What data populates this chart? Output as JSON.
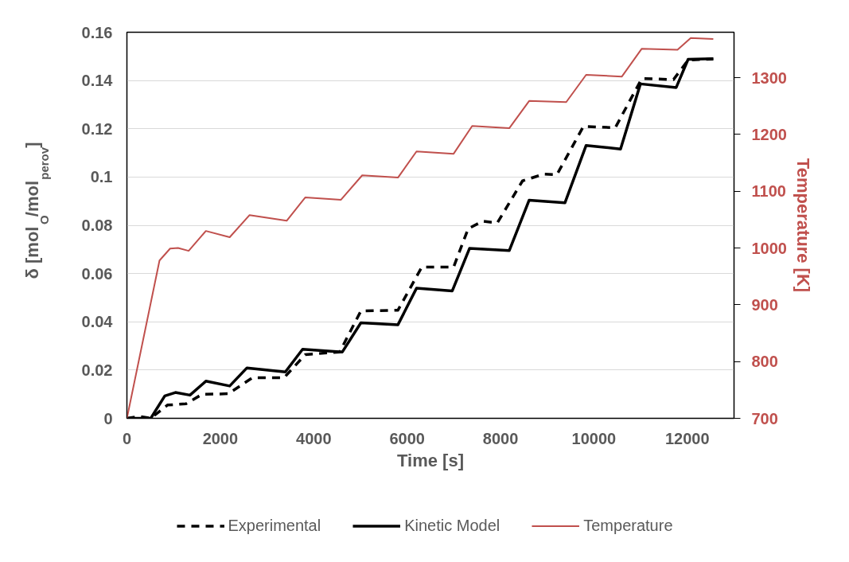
{
  "chart_data": {
    "type": "line",
    "xlabel": "Time [s]",
    "ylabel": "δ [mol$_{O}$/mol$_{perov}$]",
    "y2label": "Temperature [K]",
    "xlim": [
      0,
      13000
    ],
    "xticks": [
      0,
      2000,
      4000,
      6000,
      8000,
      10000,
      12000
    ],
    "ylim": [
      0,
      0.16
    ],
    "yticks": [
      0,
      0.02,
      0.04,
      0.06,
      0.08,
      0.1,
      0.12,
      0.14,
      0.16
    ],
    "y2lim": [
      700,
      1380
    ],
    "y2ticks": [
      700,
      800,
      900,
      1000,
      1100,
      1200,
      1300
    ],
    "grid": "y",
    "legend": "bottom",
    "series": [
      {
        "name": "Experimental",
        "color": "#000000",
        "line_style": "dashed",
        "x": [
          0,
          272,
          511,
          868,
          1265,
          1605,
          2173,
          2684,
          3364,
          3818,
          4556,
          5010,
          5804,
          6315,
          6996,
          7307,
          7620,
          7932,
          8471,
          8924,
          9208,
          9775,
          10456,
          11025,
          11705,
          12017,
          12556
        ],
        "values": [
          0,
          0.0008,
          0,
          0.0055,
          0.006,
          0.0099,
          0.0102,
          0.0168,
          0.0168,
          0.0264,
          0.0275,
          0.0445,
          0.0448,
          0.0627,
          0.0627,
          0.0786,
          0.0817,
          0.081,
          0.0984,
          0.1012,
          0.101,
          0.121,
          0.1204,
          0.1408,
          0.1404,
          0.1485,
          0.1489
        ]
      },
      {
        "name": "Kinetic Model",
        "color": "#000000",
        "line_style": "solid",
        "x": [
          0,
          511,
          811,
          1038,
          1350,
          1691,
          2201,
          2570,
          3392,
          3762,
          4613,
          5010,
          5804,
          6201,
          6967,
          7336,
          8187,
          8613,
          9379,
          9833,
          10570,
          10996,
          11762,
          12017,
          12556
        ],
        "values": [
          0,
          0,
          0.0093,
          0.0107,
          0.0096,
          0.0154,
          0.0134,
          0.0209,
          0.0192,
          0.0286,
          0.0275,
          0.0396,
          0.0388,
          0.0539,
          0.0528,
          0.0704,
          0.0695,
          0.0904,
          0.0893,
          0.1131,
          0.1116,
          0.1386,
          0.1371,
          0.1488,
          0.149
        ]
      },
      {
        "name": "Temperature",
        "color": "#c0504d",
        "line_style": "solid",
        "axis": "y2",
        "x": [
          0,
          698,
          925,
          1095,
          1322,
          1691,
          2201,
          2627,
          3421,
          3818,
          4584,
          5038,
          5804,
          6201,
          6996,
          7393,
          8187,
          8613,
          9407,
          9833,
          10599,
          11025,
          11790,
          12073,
          12556
        ],
        "values": [
          700,
          978,
          999,
          1000,
          995,
          1030,
          1019,
          1058,
          1048,
          1089,
          1085,
          1128,
          1124,
          1170,
          1166,
          1215,
          1211,
          1259,
          1257,
          1305,
          1302,
          1351,
          1349,
          1370,
          1368
        ]
      }
    ]
  }
}
